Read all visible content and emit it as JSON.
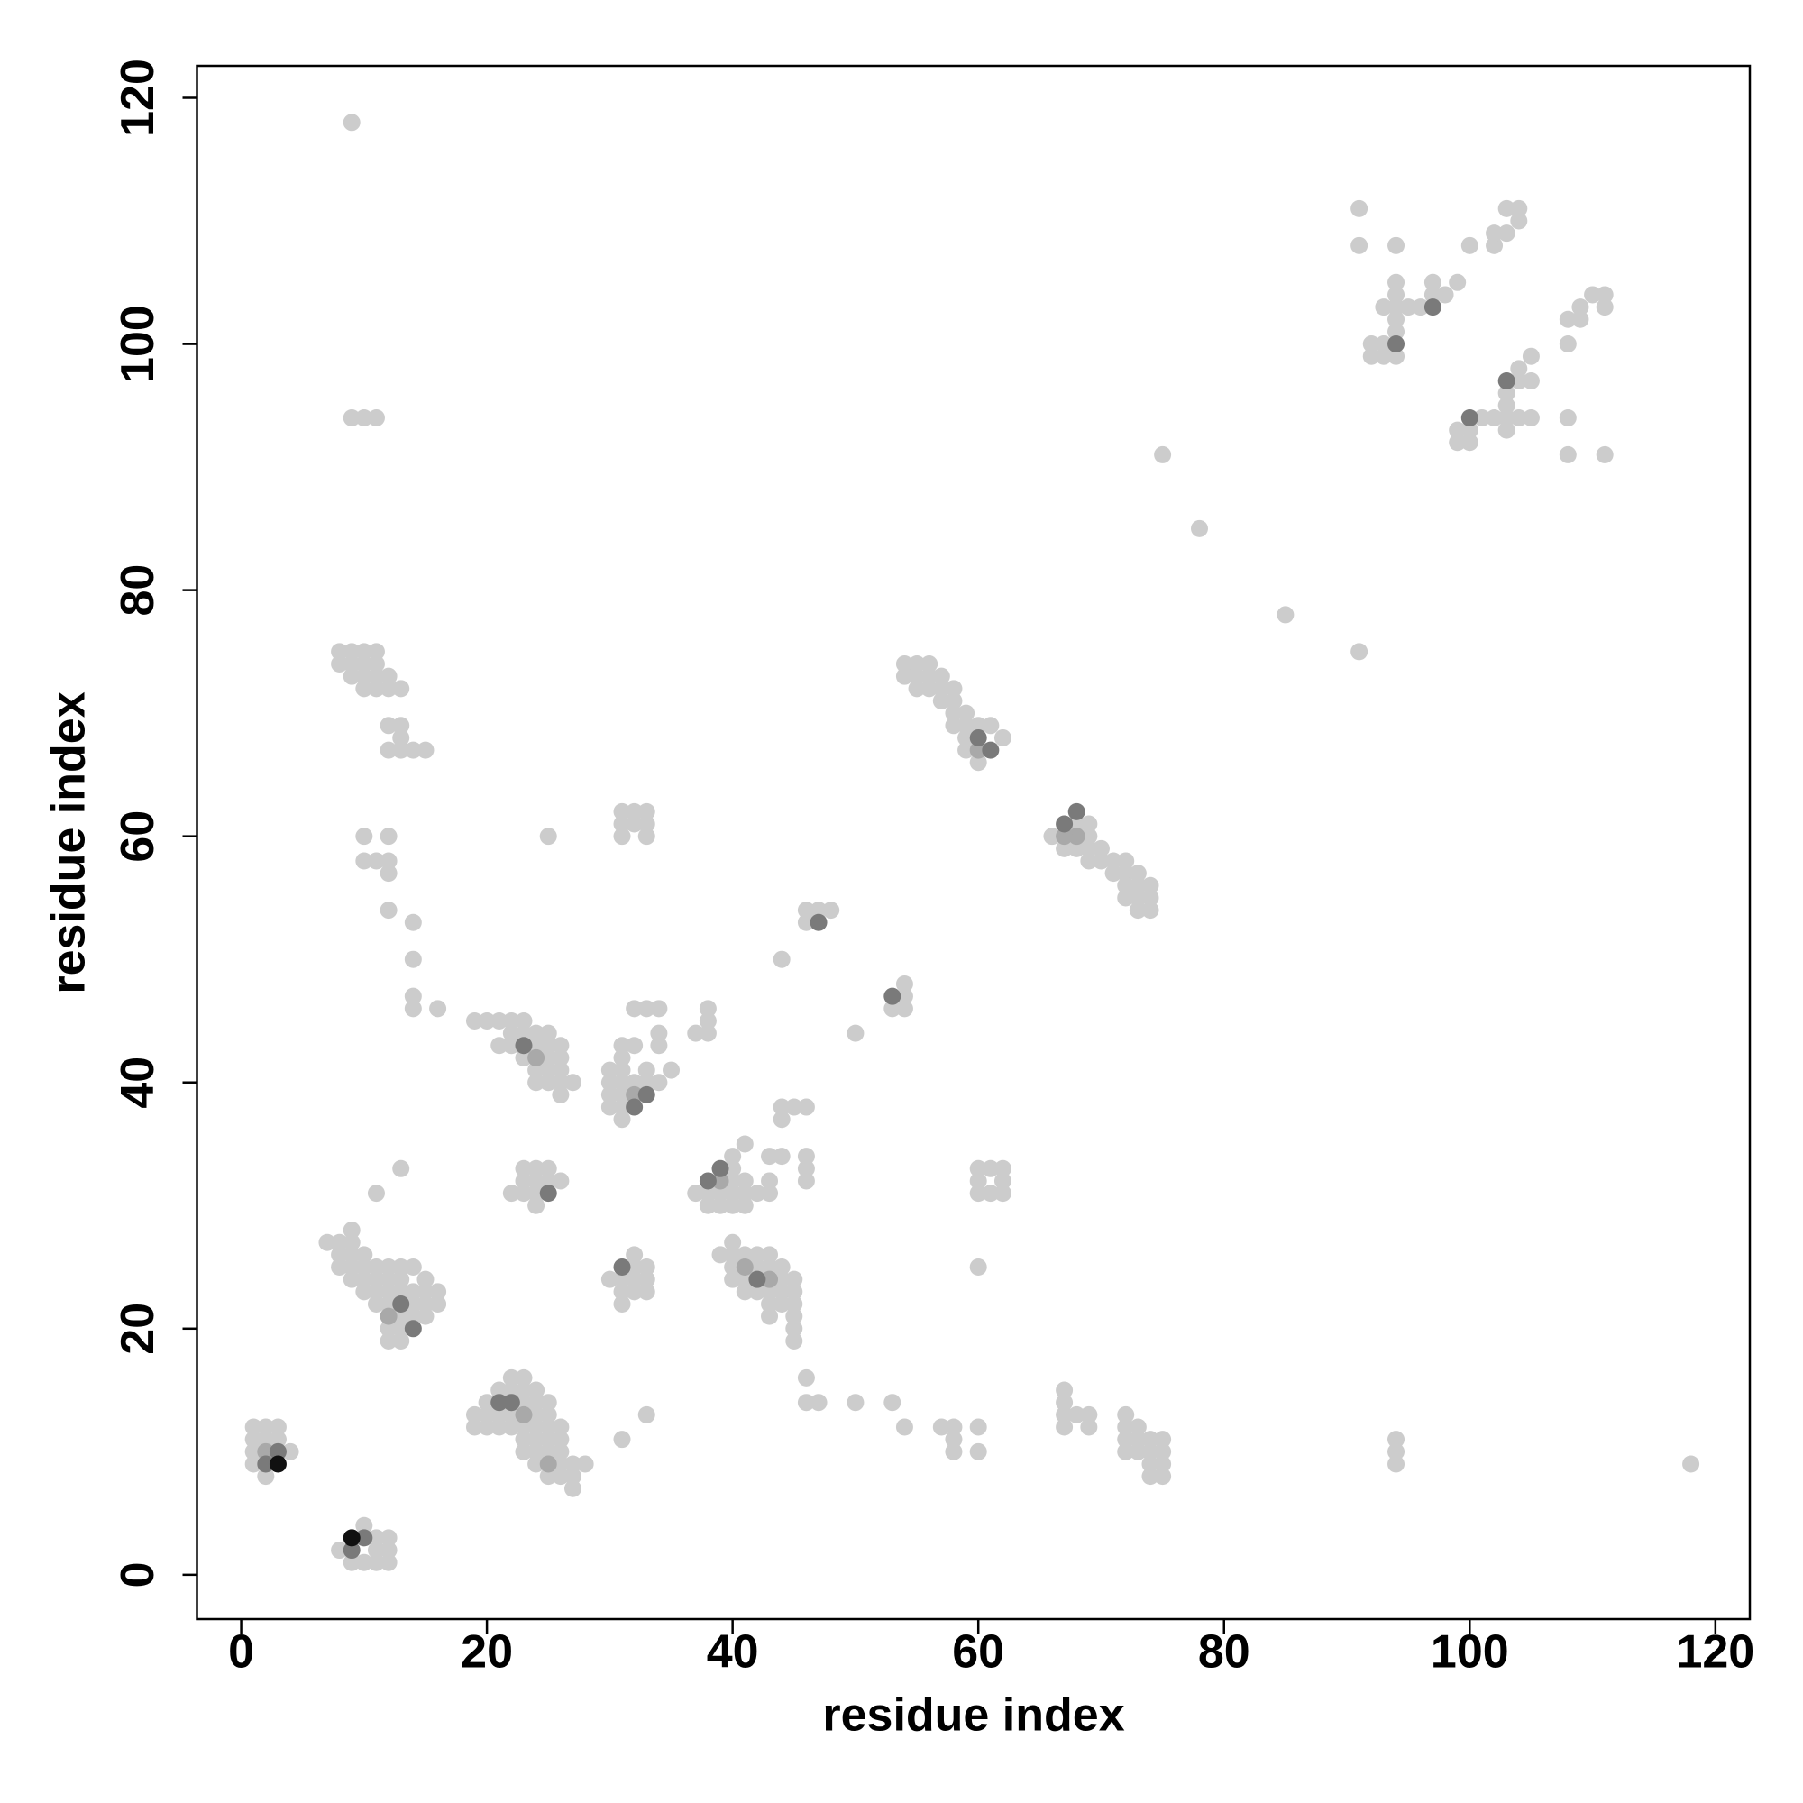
{
  "chart_data": {
    "type": "scatter",
    "xlabel": "residue index",
    "ylabel": "residue index",
    "xlim": [
      -3.6,
      122.8
    ],
    "ylim": [
      -3.6,
      122.6
    ],
    "xticks": [
      0,
      20,
      40,
      60,
      80,
      100,
      120
    ],
    "yticks": [
      0,
      20,
      40,
      60,
      80,
      100,
      120
    ],
    "grid": false,
    "series": [
      {
        "color": "#cccccc",
        "x": [
          1,
          2,
          3,
          1,
          2,
          3,
          1,
          4,
          1,
          2,
          8,
          11,
          12,
          11,
          12,
          10,
          9,
          10,
          11,
          12,
          19,
          20,
          21,
          22,
          19,
          20,
          21,
          22,
          23,
          20,
          23,
          24,
          21,
          22,
          23,
          22,
          23,
          24,
          25,
          25,
          24,
          23,
          24,
          25,
          26,
          23,
          24,
          25,
          26,
          24,
          26,
          25,
          26,
          27,
          28,
          27,
          26,
          25,
          24,
          27,
          7,
          8,
          9,
          9,
          8,
          9,
          10,
          8,
          9,
          10,
          11,
          12,
          13,
          14,
          9,
          10,
          11,
          12,
          13,
          15,
          10,
          11,
          12,
          13,
          14,
          15,
          16,
          11,
          12,
          14,
          15,
          16,
          13,
          14,
          15,
          12,
          13,
          12,
          13,
          22,
          23,
          24,
          23,
          24,
          25,
          26,
          23,
          24,
          25,
          24,
          11,
          13,
          19,
          20,
          21,
          22,
          23,
          21,
          22,
          24,
          22,
          23,
          24,
          25,
          23,
          25,
          26,
          26,
          24,
          25,
          26,
          24,
          25,
          26,
          27,
          26,
          25,
          30,
          31,
          30,
          31,
          32,
          30,
          31,
          30,
          31,
          31,
          31,
          31,
          32,
          33,
          33,
          34,
          35,
          32,
          33,
          34,
          34,
          34,
          31,
          31,
          31,
          32,
          33,
          33,
          33,
          32,
          25,
          9,
          9,
          10,
          11,
          8,
          9,
          10,
          11,
          8,
          9,
          10,
          11,
          9,
          10,
          11,
          12,
          10,
          11,
          12,
          13,
          12,
          13,
          12,
          13,
          14,
          15,
          13,
          10,
          12,
          10,
          11,
          12,
          12,
          12,
          14,
          14,
          14,
          14,
          16,
          30,
          31,
          32,
          33,
          32,
          33,
          32,
          31,
          32,
          33,
          31,
          31,
          33,
          37,
          38,
          40,
          40,
          41,
          38,
          39,
          40,
          41,
          39,
          40,
          41,
          42,
          43,
          41,
          43,
          43,
          44,
          40,
          39,
          40,
          40,
          41,
          42,
          43,
          40,
          42,
          43,
          44,
          40,
          41,
          44,
          45,
          41,
          42,
          43,
          44,
          45,
          43,
          44,
          45,
          43,
          45,
          45,
          45,
          37,
          38,
          38,
          38,
          44,
          44,
          45,
          46,
          46,
          46,
          46,
          46,
          46,
          47,
          50,
          53,
          54,
          57,
          58,
          58,
          58,
          60,
          60,
          60,
          60,
          61,
          62,
          60,
          61,
          62,
          60,
          62,
          44,
          46,
          46,
          47,
          48,
          50,
          54,
          54,
          53,
          54,
          54,
          55,
          56,
          57,
          54,
          55,
          56,
          55,
          56,
          57,
          58,
          57,
          58,
          58,
          59,
          58,
          59,
          60,
          61,
          59,
          62,
          59,
          60,
          66,
          69,
          68,
          69,
          67,
          68,
          69,
          70,
          69,
          70,
          71,
          72,
          71,
          72,
          73,
          72,
          73,
          74,
          72,
          73,
          74,
          73,
          74,
          67,
          67,
          67,
          67,
          68,
          69,
          69,
          72,
          72,
          73,
          72,
          73,
          74,
          75,
          72,
          73,
          74,
          75,
          74,
          75,
          74,
          75,
          94,
          94,
          94,
          118,
          75,
          78,
          85,
          91,
          91,
          91,
          94,
          92,
          93,
          92,
          93,
          94,
          93,
          94,
          95,
          94,
          94,
          94,
          94,
          96,
          98,
          97,
          97,
          99,
          100,
          102,
          102,
          103,
          103,
          104,
          104,
          99,
          100,
          100,
          99,
          101,
          102,
          103,
          104,
          105,
          103,
          103,
          103,
          104,
          104,
          105,
          105,
          108,
          108,
          109,
          109,
          110,
          111,
          111,
          108,
          108,
          111
        ],
        "values": [
          12,
          12,
          12,
          11,
          11,
          11,
          10,
          10,
          9,
          8,
          2,
          2,
          2,
          3,
          3,
          4,
          1,
          1,
          1,
          1,
          13,
          13,
          13,
          13,
          12,
          12,
          12,
          12,
          12,
          14,
          14,
          14,
          15,
          15,
          15,
          16,
          16,
          13,
          13,
          14,
          15,
          11,
          11,
          11,
          11,
          10,
          10,
          10,
          10,
          9,
          9,
          8,
          8,
          8,
          9,
          9,
          12,
          12,
          12,
          7,
          27,
          27,
          27,
          28,
          26,
          26,
          26,
          25,
          25,
          25,
          25,
          25,
          25,
          25,
          24,
          24,
          24,
          24,
          24,
          24,
          23,
          23,
          23,
          23,
          23,
          23,
          23,
          22,
          22,
          22,
          22,
          22,
          21,
          21,
          21,
          20,
          20,
          19,
          19,
          31,
          31,
          31,
          32,
          32,
          32,
          32,
          33,
          33,
          33,
          30,
          31,
          33,
          45,
          45,
          45,
          45,
          45,
          43,
          43,
          43,
          44,
          44,
          44,
          44,
          42,
          42,
          42,
          43,
          41,
          41,
          41,
          40,
          40,
          40,
          40,
          39,
          43,
          41,
          41,
          40,
          40,
          40,
          39,
          39,
          38,
          38,
          37,
          42,
          43,
          43,
          40,
          41,
          40,
          41,
          46,
          46,
          46,
          44,
          43,
          60,
          61,
          62,
          62,
          62,
          61,
          60,
          61,
          60,
          118,
          94,
          94,
          94,
          75,
          75,
          75,
          75,
          74,
          74,
          74,
          74,
          73,
          73,
          73,
          73,
          72,
          72,
          72,
          72,
          69,
          69,
          67,
          67,
          67,
          67,
          68,
          60,
          60,
          58,
          58,
          58,
          57,
          54,
          53,
          50,
          47,
          46,
          46,
          24,
          24,
          24,
          24,
          25,
          25,
          26,
          23,
          23,
          23,
          22,
          11,
          13,
          31,
          31,
          33,
          34,
          35,
          30,
          30,
          30,
          30,
          31,
          31,
          31,
          31,
          31,
          32,
          32,
          34,
          34,
          32,
          26,
          27,
          26,
          26,
          26,
          26,
          25,
          25,
          25,
          25,
          24,
          24,
          24,
          24,
          23,
          23,
          23,
          23,
          23,
          22,
          22,
          22,
          21,
          21,
          20,
          19,
          44,
          44,
          45,
          46,
          37,
          38,
          38,
          38,
          34,
          33,
          32,
          16,
          14,
          14,
          14,
          14,
          12,
          12,
          12,
          11,
          10,
          12,
          10,
          25,
          33,
          33,
          33,
          31,
          31,
          31,
          32,
          32,
          50,
          53,
          54,
          54,
          54,
          44,
          47,
          48,
          46,
          46,
          74,
          74,
          74,
          73,
          73,
          73,
          73,
          72,
          72,
          72,
          72,
          71,
          71,
          70,
          70,
          69,
          69,
          69,
          69,
          68,
          68,
          67,
          66,
          60,
          60,
          61,
          61,
          59,
          59,
          59,
          59,
          58,
          58,
          58,
          58,
          57,
          57,
          57,
          56,
          56,
          56,
          55,
          55,
          55,
          54,
          54,
          15,
          14,
          13,
          12,
          13,
          13,
          12,
          13,
          12,
          12,
          11,
          11,
          11,
          11,
          10,
          10,
          10,
          10,
          9,
          9,
          8,
          8,
          11,
          10,
          9,
          9,
          91,
          85,
          78,
          75,
          111,
          108,
          108,
          100,
          100,
          99,
          99,
          99,
          103,
          103,
          103,
          104,
          105,
          102,
          101,
          103,
          104,
          105,
          104,
          105,
          108,
          108,
          109,
          109,
          111,
          111,
          110,
          93,
          93,
          92,
          92,
          94,
          94,
          94,
          94,
          94,
          93,
          95,
          96,
          97,
          98,
          97,
          99,
          100,
          102,
          102,
          103,
          104,
          104,
          103,
          94,
          91,
          91
        ]
      },
      {
        "color": "#a9a9a9",
        "x": [
          2,
          12,
          23,
          25,
          24,
          43,
          41,
          68,
          60,
          67,
          32,
          39
        ],
        "values": [
          10,
          21,
          13,
          9,
          42,
          24,
          25,
          60,
          67,
          60,
          39,
          32
        ]
      },
      {
        "color": "#7a7a7a",
        "x": [
          2,
          3,
          10,
          9,
          25,
          31,
          33,
          32,
          47,
          53,
          39,
          38,
          61,
          60,
          67,
          68,
          94,
          97,
          100,
          103,
          22,
          21,
          13,
          14,
          23,
          42
        ],
        "values": [
          9,
          10,
          3,
          2,
          31,
          25,
          39,
          38,
          53,
          47,
          33,
          32,
          67,
          68,
          61,
          62,
          100,
          103,
          94,
          97,
          14,
          14,
          22,
          20,
          43,
          24
        ]
      },
      {
        "color": "#111111",
        "x": [
          3,
          9
        ],
        "values": [
          9,
          3
        ]
      }
    ]
  }
}
